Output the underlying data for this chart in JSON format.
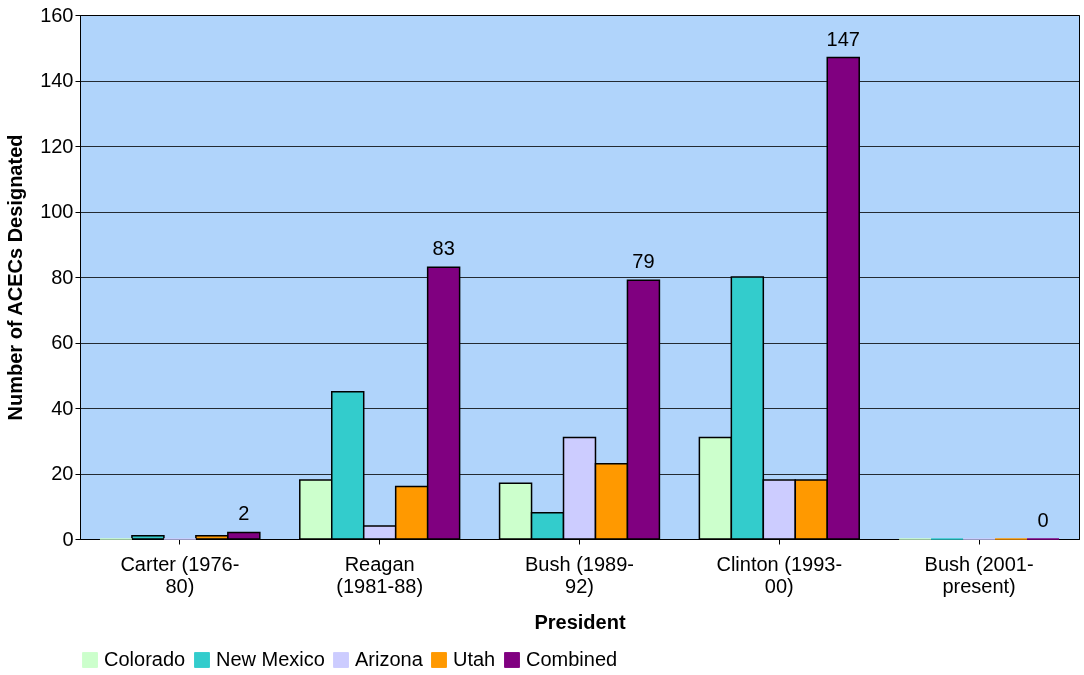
{
  "chart_data": {
    "type": "bar",
    "xlabel": "President",
    "ylabel": "Number of ACECs Designated",
    "categories": [
      "Carter (1976-\n80)",
      "Reagan\n(1981-88)",
      "Bush (1989-\n92)",
      "Clinton (1993-\n00)",
      "Bush (2001-\npresent)"
    ],
    "series": [
      {
        "name": "Colorado",
        "color": "#ccffcc",
        "values": [
          0,
          18,
          17,
          31,
          0
        ]
      },
      {
        "name": "New Mexico",
        "color": "#33cccc",
        "values": [
          1,
          45,
          8,
          80,
          0
        ]
      },
      {
        "name": "Arizona",
        "color": "#ccccff",
        "values": [
          0,
          4,
          31,
          18,
          0
        ]
      },
      {
        "name": "Utah",
        "color": "#ff9900",
        "values": [
          1,
          16,
          23,
          18,
          0
        ]
      },
      {
        "name": "Combined",
        "color": "#800080",
        "values": [
          2,
          83,
          79,
          147,
          0
        ],
        "value_labels": [
          "2",
          "83",
          "79",
          "147",
          "0"
        ]
      }
    ],
    "ylim": [
      0,
      160
    ],
    "yticks": [
      0,
      20,
      40,
      60,
      80,
      100,
      120,
      140,
      160
    ],
    "grid": "y",
    "legend": "bottom"
  }
}
